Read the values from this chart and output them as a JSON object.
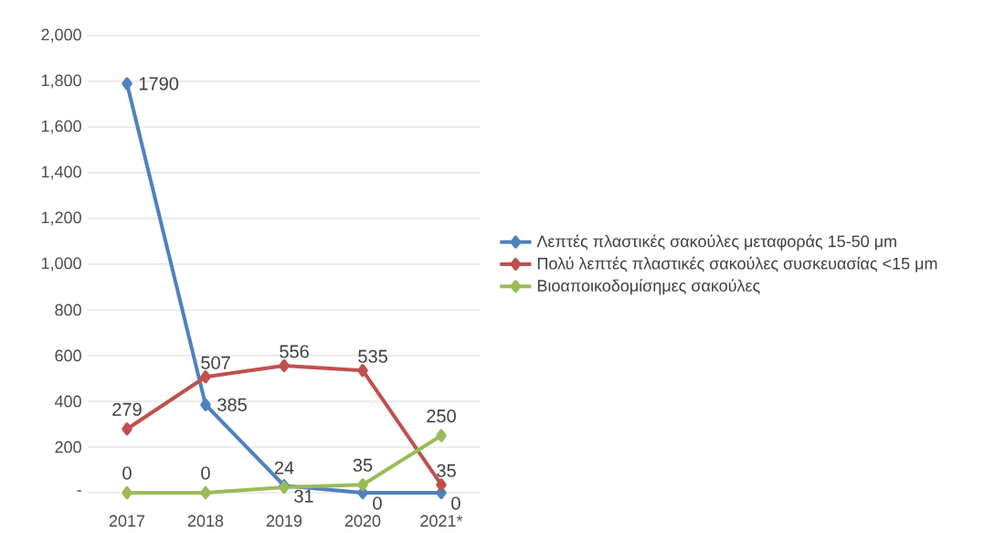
{
  "chart_data": {
    "type": "line",
    "categories": [
      "2017",
      "2018",
      "2019",
      "2020",
      "2021*"
    ],
    "series": [
      {
        "name": "Λεπτές πλαστικές σακούλες μεταφοράς 15-50 μm",
        "color": "#4f81bd",
        "values": [
          1790,
          385,
          31,
          0,
          0
        ]
      },
      {
        "name": "Πολύ λεπτές πλαστικές σακούλες συσκευασίας <15 μm",
        "color": "#c0504d",
        "values": [
          279,
          507,
          556,
          535,
          35
        ]
      },
      {
        "name": "Βιοαποικοδομίσημες σακούλες",
        "color": "#9bbb59",
        "values": [
          0,
          0,
          24,
          35,
          250
        ]
      }
    ],
    "ylim": [
      0,
      2000
    ],
    "yticks": [
      {
        "value": 0,
        "label": "-"
      },
      {
        "value": 200,
        "label": "200"
      },
      {
        "value": 400,
        "label": "400"
      },
      {
        "value": 600,
        "label": "600"
      },
      {
        "value": 800,
        "label": "800"
      },
      {
        "value": 1000,
        "label": "1,000"
      },
      {
        "value": 1200,
        "label": "1,200"
      },
      {
        "value": 1400,
        "label": "1,400"
      },
      {
        "value": 1600,
        "label": "1,600"
      },
      {
        "value": 1800,
        "label": "1,800"
      },
      {
        "value": 2000,
        "label": "2,000"
      }
    ],
    "grid": "y",
    "legend": "right",
    "marker": "diamond",
    "line_style": "solid",
    "data_labels": true
  }
}
